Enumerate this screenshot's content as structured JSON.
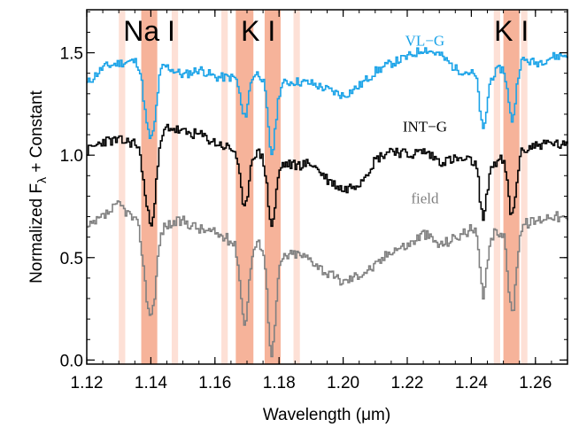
{
  "chart_data": {
    "type": "line",
    "xlabel": "Wavelength (μm)",
    "ylabel": "Normalized F_λ + Constant",
    "ylabel_parts": {
      "pre": "Normalized F",
      "sub": "λ",
      "post": " + Constant"
    },
    "xlim": [
      1.12,
      1.27
    ],
    "ylim": [
      -0.02,
      1.71
    ],
    "xticks": [
      1.12,
      1.14,
      1.16,
      1.18,
      1.2,
      1.22,
      1.24,
      1.26
    ],
    "xtick_labels": [
      "1.12",
      "1.14",
      "1.16",
      "1.18",
      "1.20",
      "1.22",
      "1.24",
      "1.26"
    ],
    "yticks": [
      0.0,
      0.5,
      1.0,
      1.5
    ],
    "ytick_labels": [
      "0.0",
      "0.5",
      "1.0",
      "1.5"
    ],
    "grid": false,
    "bands": [
      {
        "x0": 1.137,
        "x1": 1.142,
        "strength": "strong"
      },
      {
        "x0": 1.13,
        "x1": 1.132,
        "strength": "weak"
      },
      {
        "x0": 1.1465,
        "x1": 1.1485,
        "strength": "weak"
      },
      {
        "x0": 1.1665,
        "x1": 1.172,
        "strength": "strong"
      },
      {
        "x0": 1.1755,
        "x1": 1.1805,
        "strength": "strong"
      },
      {
        "x0": 1.162,
        "x1": 1.164,
        "strength": "weak"
      },
      {
        "x0": 1.1845,
        "x1": 1.1865,
        "strength": "weak"
      },
      {
        "x0": 1.25,
        "x1": 1.255,
        "strength": "strong"
      },
      {
        "x0": 1.247,
        "x1": 1.249,
        "strength": "weak"
      },
      {
        "x0": 1.2555,
        "x1": 1.2575,
        "strength": "weak"
      }
    ],
    "feature_labels": [
      {
        "text": "Na I",
        "x": 1.1395
      },
      {
        "text": "K I",
        "x": 1.1735
      },
      {
        "text": "K I",
        "x": 1.2525
      }
    ],
    "series": [
      {
        "name": "VL−G",
        "color": "#1aa3e8",
        "offset": 1.35,
        "knots": [
          [
            1.12,
            0.0
          ],
          [
            1.125,
            0.08
          ],
          [
            1.13,
            0.1
          ],
          [
            1.135,
            0.11
          ],
          [
            1.14,
            0.12
          ],
          [
            1.145,
            0.08
          ],
          [
            1.15,
            0.04
          ],
          [
            1.155,
            0.07
          ],
          [
            1.16,
            0.03
          ],
          [
            1.165,
            0.03
          ],
          [
            1.17,
            0.06
          ],
          [
            1.175,
            0.04
          ],
          [
            1.18,
            0.0
          ],
          [
            1.185,
            0.01
          ],
          [
            1.19,
            0.0
          ],
          [
            1.195,
            -0.03
          ],
          [
            1.2,
            -0.06
          ],
          [
            1.205,
            -0.01
          ],
          [
            1.21,
            0.06
          ],
          [
            1.215,
            0.1
          ],
          [
            1.22,
            0.13
          ],
          [
            1.225,
            0.17
          ],
          [
            1.23,
            0.14
          ],
          [
            1.235,
            0.07
          ],
          [
            1.24,
            0.05
          ],
          [
            1.245,
            0.02
          ],
          [
            1.25,
            0.09
          ],
          [
            1.255,
            0.12
          ],
          [
            1.26,
            0.1
          ],
          [
            1.265,
            0.13
          ],
          [
            1.27,
            0.14
          ]
        ],
        "lines": [
          [
            1.1385,
            0.24,
            0.0012
          ],
          [
            1.1405,
            0.3,
            0.0012
          ],
          [
            1.169,
            0.22,
            0.0012
          ],
          [
            1.1775,
            0.36,
            0.0012
          ],
          [
            1.2435,
            0.26,
            0.001
          ],
          [
            1.2525,
            0.28,
            0.0012
          ]
        ],
        "noise": 0.022,
        "seed": 11
      },
      {
        "name": "INT−G",
        "color": "#000000",
        "offset": 1.0,
        "knots": [
          [
            1.12,
            0.02
          ],
          [
            1.125,
            0.07
          ],
          [
            1.13,
            0.07
          ],
          [
            1.135,
            0.06
          ],
          [
            1.14,
            0.02
          ],
          [
            1.145,
            0.14
          ],
          [
            1.15,
            0.11
          ],
          [
            1.155,
            0.1
          ],
          [
            1.16,
            0.06
          ],
          [
            1.165,
            0.03
          ],
          [
            1.17,
            0.03
          ],
          [
            1.175,
            0.0
          ],
          [
            1.18,
            -0.04
          ],
          [
            1.185,
            -0.05
          ],
          [
            1.19,
            -0.04
          ],
          [
            1.195,
            -0.12
          ],
          [
            1.2,
            -0.17
          ],
          [
            1.205,
            -0.13
          ],
          [
            1.21,
            -0.02
          ],
          [
            1.215,
            0.03
          ],
          [
            1.22,
            0.0
          ],
          [
            1.225,
            0.02
          ],
          [
            1.23,
            -0.03
          ],
          [
            1.235,
            -0.02
          ],
          [
            1.24,
            -0.03
          ],
          [
            1.245,
            -0.06
          ],
          [
            1.25,
            -0.01
          ],
          [
            1.255,
            0.02
          ],
          [
            1.26,
            0.05
          ],
          [
            1.265,
            0.06
          ],
          [
            1.27,
            0.04
          ]
        ],
        "lines": [
          [
            1.1385,
            0.22,
            0.0012
          ],
          [
            1.1405,
            0.26,
            0.0012
          ],
          [
            1.169,
            0.3,
            0.0012
          ],
          [
            1.1775,
            0.32,
            0.0012
          ],
          [
            1.2435,
            0.26,
            0.001
          ],
          [
            1.2525,
            0.3,
            0.0012
          ]
        ],
        "noise": 0.026,
        "seed": 23
      },
      {
        "name": "field",
        "color": "#808080",
        "offset": 0.68,
        "knots": [
          [
            1.12,
            -0.04
          ],
          [
            1.125,
            0.02
          ],
          [
            1.13,
            0.08
          ],
          [
            1.135,
            0.0
          ],
          [
            1.14,
            -0.06
          ],
          [
            1.145,
            -0.02
          ],
          [
            1.15,
            0.0
          ],
          [
            1.155,
            -0.04
          ],
          [
            1.16,
            -0.06
          ],
          [
            1.165,
            -0.1
          ],
          [
            1.17,
            -0.14
          ],
          [
            1.175,
            -0.1
          ],
          [
            1.18,
            -0.18
          ],
          [
            1.185,
            -0.16
          ],
          [
            1.19,
            -0.19
          ],
          [
            1.195,
            -0.26
          ],
          [
            1.2,
            -0.3
          ],
          [
            1.205,
            -0.26
          ],
          [
            1.21,
            -0.22
          ],
          [
            1.215,
            -0.14
          ],
          [
            1.22,
            -0.12
          ],
          [
            1.225,
            -0.06
          ],
          [
            1.23,
            -0.12
          ],
          [
            1.235,
            -0.08
          ],
          [
            1.24,
            -0.04
          ],
          [
            1.245,
            -0.08
          ],
          [
            1.25,
            -0.04
          ],
          [
            1.255,
            -0.02
          ],
          [
            1.26,
            0.0
          ],
          [
            1.265,
            0.03
          ],
          [
            1.27,
            0.0
          ]
        ],
        "lines": [
          [
            1.1385,
            0.26,
            0.0012
          ],
          [
            1.1405,
            0.3,
            0.0012
          ],
          [
            1.169,
            0.36,
            0.0012
          ],
          [
            1.1775,
            0.5,
            0.0012
          ],
          [
            1.2435,
            0.3,
            0.001
          ],
          [
            1.2525,
            0.42,
            0.0012
          ]
        ],
        "noise": 0.026,
        "seed": 37
      }
    ],
    "series_label_positions": [
      {
        "x": 1.2255,
        "y": 1.535
      },
      {
        "x": 1.2255,
        "y": 1.115
      },
      {
        "x": 1.2255,
        "y": 0.765
      }
    ]
  }
}
